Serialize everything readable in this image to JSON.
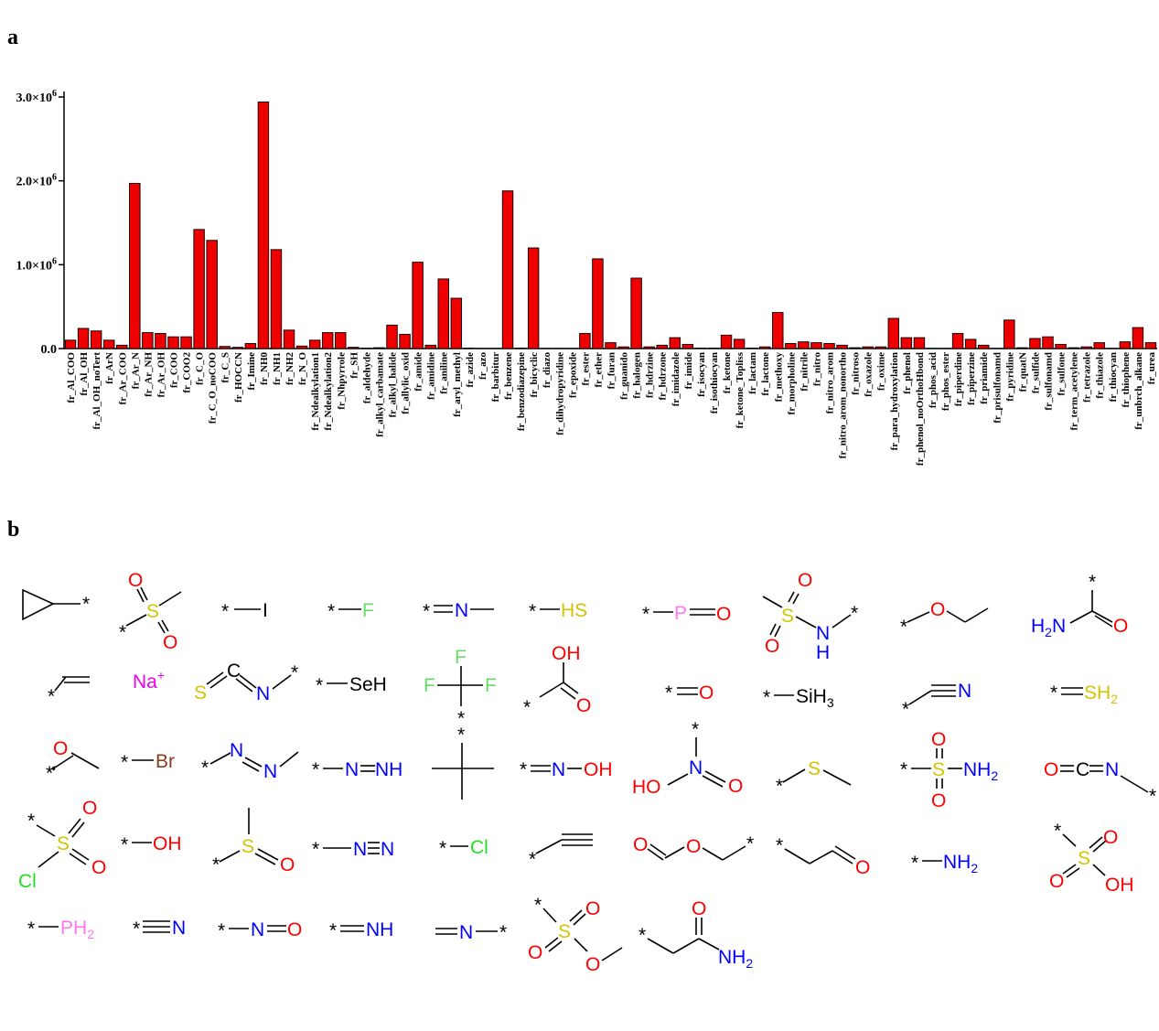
{
  "panels": {
    "a": "a",
    "b": "b"
  },
  "chart_data": {
    "type": "bar",
    "bar_color": "#ee0000",
    "ylim": [
      0,
      3000000
    ],
    "yticks": [
      {
        "value": 0,
        "base": "0.0",
        "exp": ""
      },
      {
        "value": 1000000,
        "base": "1.0×10",
        "exp": "6"
      },
      {
        "value": 2000000,
        "base": "2.0×10",
        "exp": "6"
      },
      {
        "value": 3000000,
        "base": "3.0×10",
        "exp": "6"
      }
    ],
    "categories": [
      "fr_Al_COO",
      "fr_Al_OH",
      "fr_Al_OH_noTert",
      "fr_ArN",
      "fr_Ar_COO",
      "fr_Ar_N",
      "fr_Ar_NH",
      "fr_Ar_OH",
      "fr_COO",
      "fr_COO2",
      "fr_C_O",
      "fr_C_O_noCOO",
      "fr_C_S",
      "fr_HOCCN",
      "fr_Imine",
      "fr_NH0",
      "fr_NH1",
      "fr_NH2",
      "fr_N_O",
      "fr_Ndealkylation1",
      "fr_Ndealkylation2",
      "fr_Nhpyrrole",
      "fr_SH",
      "fr_aldehyde",
      "fr_alkyl_carbamate",
      "fr_alkyl_halide",
      "fr_allylic_oxid",
      "fr_amide",
      "fr_amidine",
      "fr_aniline",
      "fr_aryl_methyl",
      "fr_azide",
      "fr_azo",
      "fr_barbitur",
      "fr_benzene",
      "fr_benzodiazepine",
      "fr_bicyclic",
      "fr_diazo",
      "fr_dihydropyridine",
      "fr_epoxide",
      "fr_ester",
      "fr_ether",
      "fr_furan",
      "fr_guanido",
      "fr_halogen",
      "fr_hdrzine",
      "fr_hdrzone",
      "fr_imidazole",
      "fr_imide",
      "fr_isocyan",
      "fr_isothiocyan",
      "fr_ketone",
      "fr_ketone_Topliss",
      "fr_lactam",
      "fr_lactone",
      "fr_methoxy",
      "fr_morpholine",
      "fr_nitrile",
      "fr_nitro",
      "fr_nitro_arom",
      "fr_nitro_arom_nonortho",
      "fr_nitroso",
      "fr_oxazole",
      "fr_oxime",
      "fr_para_hydroxylation",
      "fr_phenol",
      "fr_phenol_noOrthoHbond",
      "fr_phos_acid",
      "fr_phos_ester",
      "fr_piperdine",
      "fr_piperzine",
      "fr_priamide",
      "fr_prisulfonamd",
      "fr_pyridine",
      "fr_quatN",
      "fr_sulfide",
      "fr_sulfonamd",
      "fr_sulfone",
      "fr_term_acetylene",
      "fr_tetrazole",
      "fr_thiazole",
      "fr_thiocyan",
      "fr_thiophene",
      "fr_unbrch_alkane",
      "fr_urea"
    ],
    "values": [
      100000,
      240000,
      210000,
      100000,
      40000,
      1970000,
      190000,
      180000,
      140000,
      140000,
      1420000,
      1290000,
      25000,
      15000,
      60000,
      2940000,
      1180000,
      220000,
      30000,
      100000,
      190000,
      190000,
      15000,
      5000,
      10000,
      280000,
      170000,
      1030000,
      40000,
      830000,
      600000,
      5000,
      3000,
      3000,
      1880000,
      5000,
      1200000,
      3000,
      3000,
      3000,
      180000,
      1070000,
      70000,
      20000,
      840000,
      20000,
      40000,
      130000,
      50000,
      5000,
      5000,
      160000,
      110000,
      5000,
      20000,
      430000,
      60000,
      80000,
      70000,
      60000,
      40000,
      10000,
      20000,
      20000,
      360000,
      130000,
      130000,
      3000,
      3000,
      180000,
      110000,
      40000,
      3000,
      340000,
      10000,
      120000,
      140000,
      50000,
      10000,
      20000,
      70000,
      3000,
      80000,
      250000,
      70000
    ]
  },
  "molecules": {
    "star": "*",
    "I": "I",
    "F": "F",
    "N": "N",
    "HS": "HS",
    "P": "P",
    "O": "O",
    "H": "H",
    "H2N_base": "H",
    "H2N_sub": "2",
    "H2N_end": "N",
    "NH2_base": "NH",
    "NH2_sub": "2",
    "Na": "Na",
    "Na_sup": "+",
    "C": "C",
    "S": "S",
    "SeH": "SeH",
    "OH": "OH",
    "HO": "HO",
    "SiH3_base": "SiH",
    "SiH3_sub": "3",
    "SH2_base": "SH",
    "SH2_sub": "2",
    "Br": "Br",
    "NH": "NH",
    "Cl": "Cl",
    "PH2_base": "PH",
    "PH2_sub": "2",
    "N2O": "N",
    "Oeq": "O"
  },
  "colors": {
    "oxygen": "#ff0000",
    "nitrogen": "#0000ff",
    "sulfur": "#d4c400",
    "fluorine": "#66dd66",
    "chlorine": "#22dd22",
    "bromine": "#8b3a1a",
    "phosphorus": "#ff77ee",
    "sodium": "#ee00ee",
    "selenium": "#000000"
  }
}
